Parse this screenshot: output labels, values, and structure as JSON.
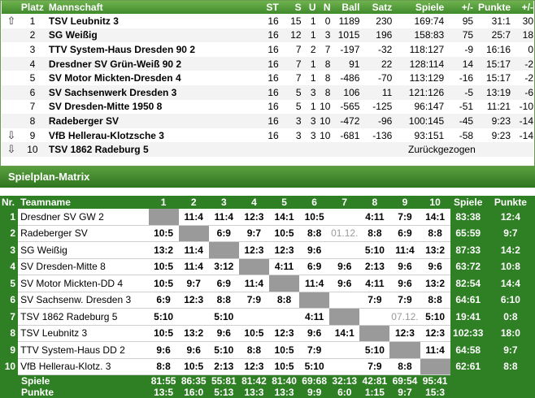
{
  "standings": {
    "headers": [
      "Platz",
      "Mannschaft",
      "ST",
      "S",
      "U",
      "N",
      "Ball",
      "Satz",
      "Spiele",
      "+/-",
      "Punkte",
      "+/-"
    ],
    "rows": [
      {
        "icon": "up",
        "platz": "1",
        "team": "TSV Leubnitz 3",
        "st": "16",
        "s": "15",
        "u": "1",
        "n": "0",
        "ball": "1189",
        "satz": "230",
        "spiele": "169:74",
        "d1": "95",
        "punkte": "31:1",
        "d2": "30"
      },
      {
        "icon": "",
        "platz": "2",
        "team": "SG Weißig",
        "st": "16",
        "s": "12",
        "u": "1",
        "n": "3",
        "ball": "1015",
        "satz": "196",
        "spiele": "158:83",
        "d1": "75",
        "punkte": "25:7",
        "d2": "18"
      },
      {
        "icon": "",
        "platz": "3",
        "team": "TTV System-Haus Dresden 90 2",
        "st": "16",
        "s": "7",
        "u": "2",
        "n": "7",
        "ball": "-197",
        "satz": "-32",
        "spiele": "118:127",
        "d1": "-9",
        "punkte": "16:16",
        "d2": "0"
      },
      {
        "icon": "",
        "platz": "4",
        "team": "Dresdner SV Grün-Weiß 90 2",
        "st": "16",
        "s": "7",
        "u": "1",
        "n": "8",
        "ball": "91",
        "satz": "22",
        "spiele": "128:114",
        "d1": "14",
        "punkte": "15:17",
        "d2": "-2"
      },
      {
        "icon": "",
        "platz": "5",
        "team": "SV Motor Mickten-Dresden 4",
        "st": "16",
        "s": "7",
        "u": "1",
        "n": "8",
        "ball": "-486",
        "satz": "-70",
        "spiele": "113:129",
        "d1": "-16",
        "punkte": "15:17",
        "d2": "-2"
      },
      {
        "icon": "",
        "platz": "6",
        "team": "SV Sachsenwerk Dresden 3",
        "st": "16",
        "s": "5",
        "u": "3",
        "n": "8",
        "ball": "106",
        "satz": "11",
        "spiele": "121:126",
        "d1": "-5",
        "punkte": "13:19",
        "d2": "-6"
      },
      {
        "icon": "",
        "platz": "7",
        "team": "SV Dresden-Mitte 1950 8",
        "st": "16",
        "s": "5",
        "u": "1",
        "n": "10",
        "ball": "-565",
        "satz": "-125",
        "spiele": "96:147",
        "d1": "-51",
        "punkte": "11:21",
        "d2": "-10"
      },
      {
        "icon": "",
        "platz": "8",
        "team": "Radeberger SV",
        "st": "16",
        "s": "3",
        "u": "3",
        "n": "10",
        "ball": "-472",
        "satz": "-96",
        "spiele": "100:145",
        "d1": "-45",
        "punkte": "9:23",
        "d2": "-14"
      },
      {
        "icon": "down",
        "platz": "9",
        "team": "VfB Hellerau-Klotzsche 3",
        "st": "16",
        "s": "3",
        "u": "3",
        "n": "10",
        "ball": "-681",
        "satz": "-136",
        "spiele": "93:151",
        "d1": "-58",
        "punkte": "9:23",
        "d2": "-14"
      },
      {
        "icon": "down",
        "platz": "10",
        "team": "TSV 1862 Radeburg 5",
        "st": "",
        "s": "",
        "u": "",
        "n": "",
        "ball": "",
        "satz": "",
        "spiele": "",
        "d1": "",
        "punkte": "",
        "d2": "",
        "note": "Zurückgezogen"
      }
    ]
  },
  "matrix": {
    "title": "Spielplan-Matrix",
    "headers": {
      "nr": "Nr.",
      "team": "Teamname",
      "cols": [
        "1",
        "2",
        "3",
        "4",
        "5",
        "6",
        "7",
        "8",
        "9",
        "10"
      ],
      "spiele": "Spiele",
      "punkte": "Punkte"
    },
    "rows": [
      {
        "nr": "1",
        "team": "Dresdner SV GW 2",
        "cells": [
          "",
          "11:4",
          "11:4",
          "12:3",
          "14:1",
          "10:5",
          "",
          "4:11",
          "7:9",
          "14:1"
        ],
        "spiele": "83:38",
        "punkte": "12:4"
      },
      {
        "nr": "2",
        "team": "Radeberger SV",
        "cells": [
          "10:5",
          "",
          "6:9",
          "9:7",
          "10:5",
          "8:8",
          "01.12.",
          "8:8",
          "6:9",
          "8:8"
        ],
        "spiele": "65:59",
        "punkte": "9:7"
      },
      {
        "nr": "3",
        "team": "SG Weißig",
        "cells": [
          "13:2",
          "11:4",
          "",
          "12:3",
          "12:3",
          "9:6",
          "",
          "5:10",
          "11:4",
          "13:2"
        ],
        "spiele": "87:33",
        "punkte": "14:2"
      },
      {
        "nr": "4",
        "team": "SV Dresden-Mitte 8",
        "cells": [
          "10:5",
          "11:4",
          "3:12",
          "",
          "4:11",
          "6:9",
          "9:6",
          "2:13",
          "9:6",
          "9:6"
        ],
        "spiele": "63:72",
        "punkte": "10:8"
      },
      {
        "nr": "5",
        "team": "SV Motor Mickten-DD 4",
        "cells": [
          "10:5",
          "9:7",
          "6:9",
          "11:4",
          "",
          "11:4",
          "9:6",
          "4:11",
          "9:6",
          "13:2"
        ],
        "spiele": "82:54",
        "punkte": "14:4"
      },
      {
        "nr": "6",
        "team": "SV Sachsenw. Dresden 3",
        "cells": [
          "6:9",
          "12:3",
          "8:8",
          "7:9",
          "8:8",
          "",
          "",
          "7:9",
          "7:9",
          "8:8"
        ],
        "spiele": "64:61",
        "punkte": "6:10"
      },
      {
        "nr": "7",
        "team": "TSV 1862 Radeburg 5",
        "cells": [
          "5:10",
          "",
          "5:10",
          "",
          "",
          "4:11",
          "",
          "",
          "07.12.",
          "5:10"
        ],
        "spiele": "19:41",
        "punkte": "0:8"
      },
      {
        "nr": "8",
        "team": "TSV Leubnitz 3",
        "cells": [
          "10:5",
          "13:2",
          "9:6",
          "10:5",
          "12:3",
          "9:6",
          "14:1",
          "",
          "12:3",
          "12:3"
        ],
        "spiele": "102:33",
        "punkte": "18:0"
      },
      {
        "nr": "9",
        "team": "TTV System-Haus DD 2",
        "cells": [
          "9:6",
          "9:6",
          "5:10",
          "8:8",
          "10:5",
          "7:9",
          "",
          "5:10",
          "",
          "11:4"
        ],
        "spiele": "64:58",
        "punkte": "9:7"
      },
      {
        "nr": "10",
        "team": "VfB Hellerau-Klotz. 3",
        "cells": [
          "8:8",
          "10:5",
          "2:13",
          "12:3",
          "10:5",
          "5:10",
          "",
          "7:9",
          "8:8",
          ""
        ],
        "spiele": "62:61",
        "punkte": "8:8"
      }
    ],
    "footer": {
      "spiele_label": "Spiele",
      "spiele": [
        "81:55",
        "86:35",
        "55:81",
        "81:42",
        "81:40",
        "69:68",
        "32:13",
        "42:81",
        "69:54",
        "95:41"
      ],
      "punkte_label": "Punkte",
      "punkte": [
        "13:5",
        "16:0",
        "5:13",
        "13:3",
        "13:3",
        "9:9",
        "6:0",
        "1:15",
        "9:7",
        "15:3"
      ]
    },
    "future_date_cells": [
      [
        1,
        6
      ],
      [
        6,
        8
      ]
    ],
    "colors": {
      "header_green": "#2f7f24",
      "diag_gray": "#9a9a9a"
    }
  }
}
